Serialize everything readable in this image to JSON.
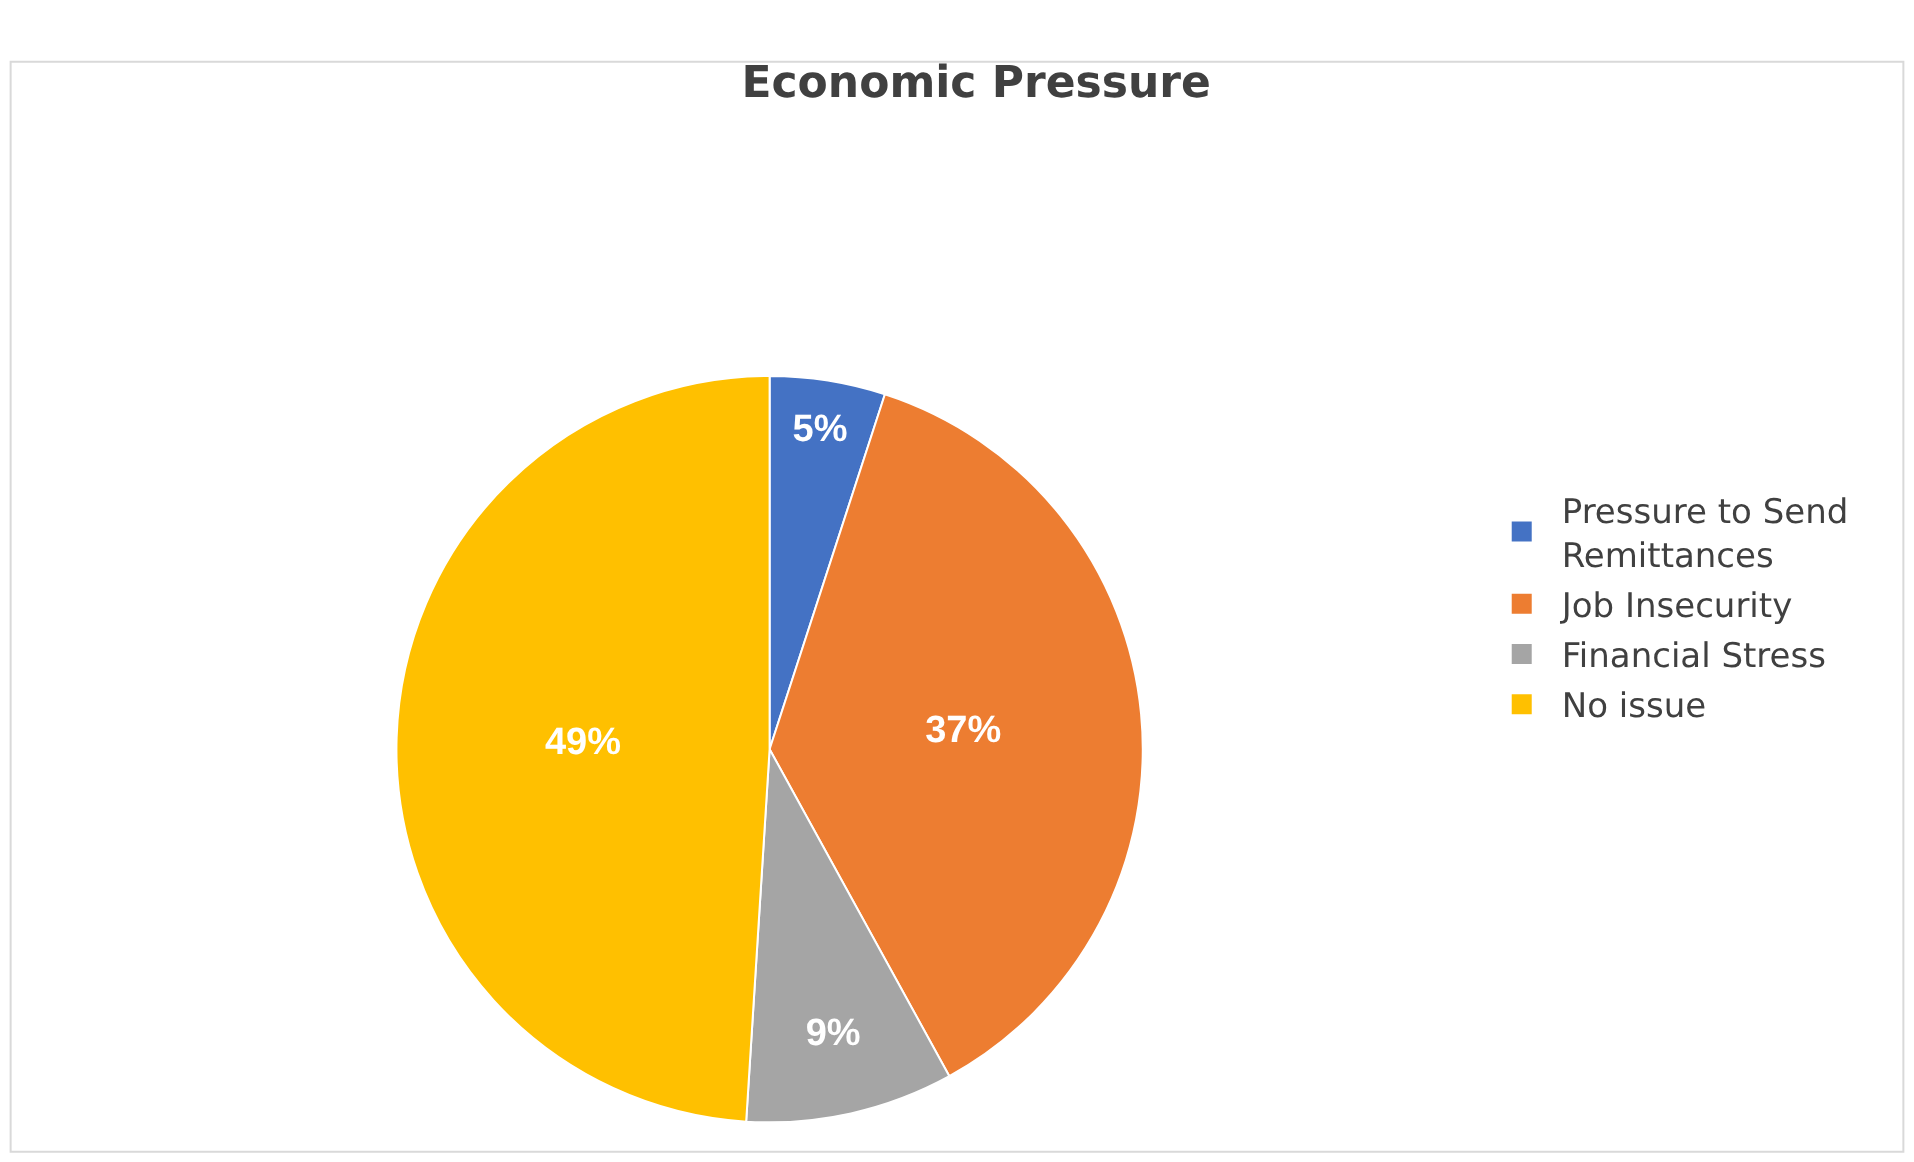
{
  "chart_data": {
    "type": "pie",
    "title": "Economic Pressure",
    "categories": [
      "Pressure to Send Remittances",
      "Job Insecurity",
      "Financial Stress",
      "No issue"
    ],
    "values": [
      5,
      37,
      9,
      49
    ],
    "colors": [
      "#4472c4",
      "#ed7d31",
      "#a5a5a5",
      "#ffc000"
    ],
    "value_labels": [
      "5%",
      "37%",
      "9%",
      "49%"
    ],
    "legend": "right"
  }
}
